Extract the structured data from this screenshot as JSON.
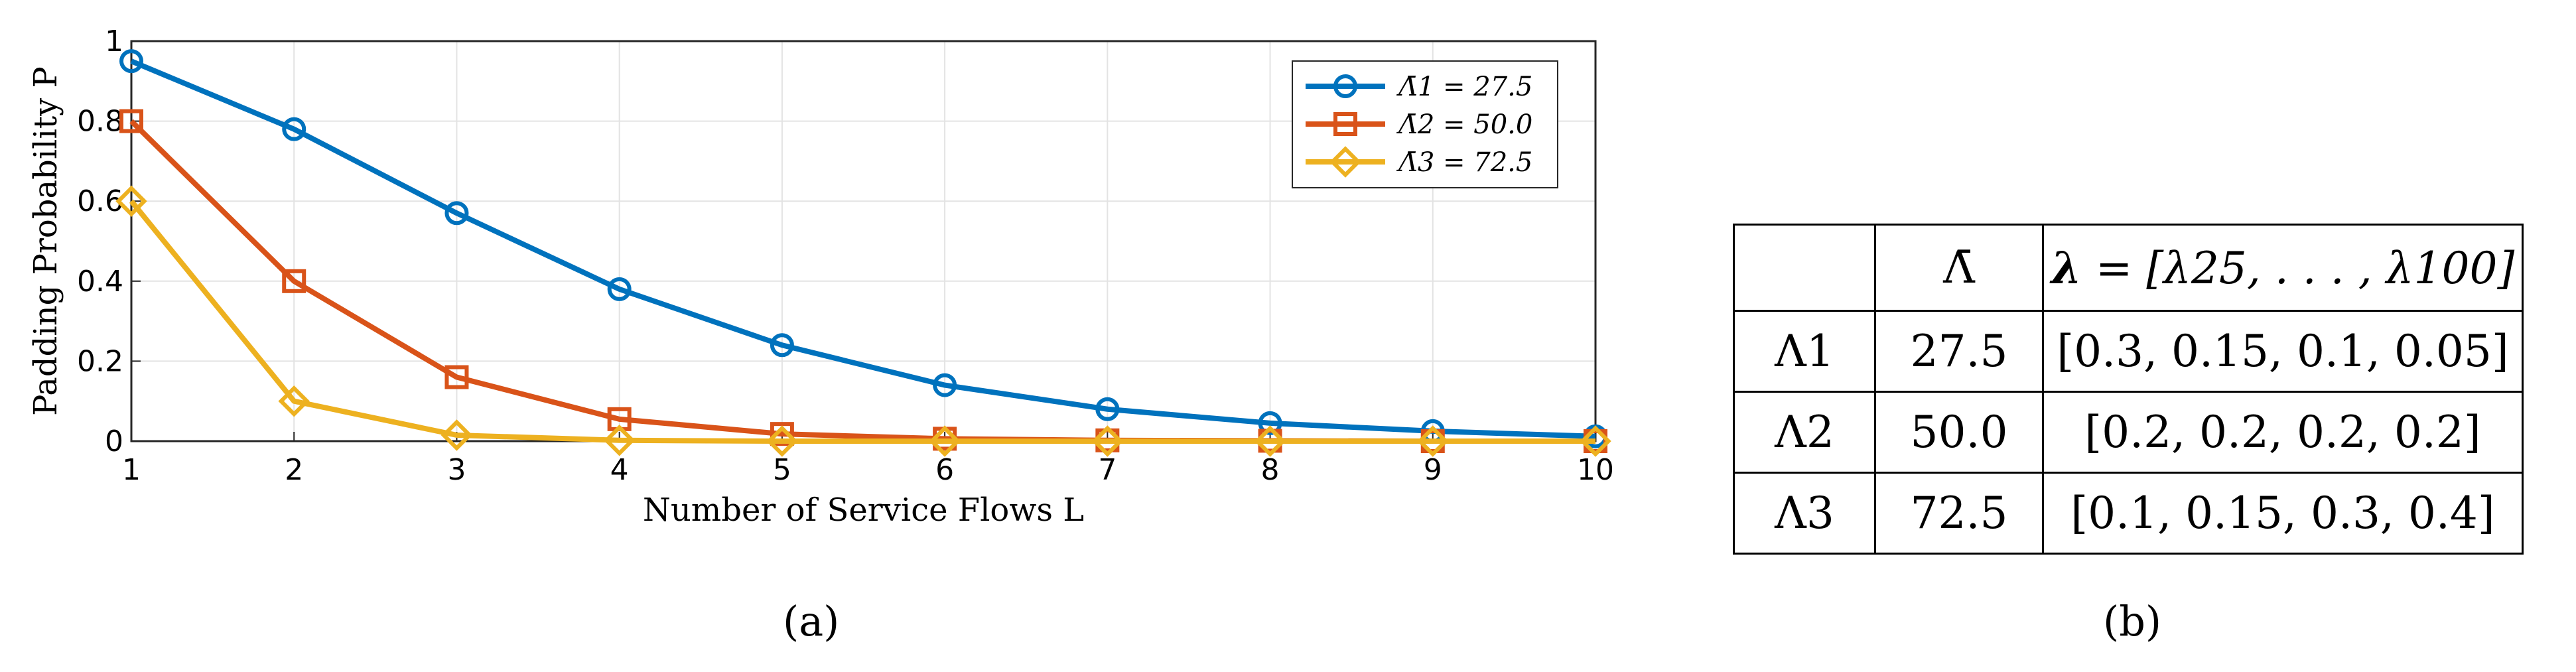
{
  "chart_data": {
    "type": "line",
    "x": [
      1,
      2,
      3,
      4,
      5,
      6,
      7,
      8,
      9,
      10
    ],
    "xlabel": "Number of Service Flows L",
    "ylabel": "Padding Probability P",
    "xlim": [
      1,
      10
    ],
    "ylim": [
      0,
      1
    ],
    "xticks": [
      "1",
      "2",
      "3",
      "4",
      "5",
      "6",
      "7",
      "8",
      "9",
      "10"
    ],
    "yticks": [
      "0",
      "0.2",
      "0.4",
      "0.6",
      "0.8",
      "1"
    ],
    "grid": true,
    "legend_position": "top-right",
    "series": [
      {
        "name": "Λ̄1 = 27.5",
        "marker": "circle",
        "color": "#0072BD",
        "values": [
          0.95,
          0.78,
          0.57,
          0.38,
          0.24,
          0.14,
          0.08,
          0.045,
          0.025,
          0.012
        ]
      },
      {
        "name": "Λ̄2 = 50.0",
        "marker": "square",
        "color": "#D95319",
        "values": [
          0.8,
          0.4,
          0.16,
          0.055,
          0.018,
          0.006,
          0.002,
          0.001,
          0.0,
          0.0
        ]
      },
      {
        "name": "Λ̄3 = 72.5",
        "marker": "diamond",
        "color": "#EDB120",
        "values": [
          0.6,
          0.1,
          0.015,
          0.002,
          0.0,
          0.0,
          0.0,
          0.0,
          0.0,
          0.0
        ]
      }
    ]
  },
  "panel_labels": {
    "a": "(a)",
    "b": "(b)"
  },
  "table": {
    "header": {
      "col0": "",
      "col1": "Λ̄",
      "col2_lambda": "λ",
      "col2_rest": " = [λ25, . . . , λ100]"
    },
    "rows": [
      {
        "label": "Λ1",
        "mean": "27.5",
        "vector": "[0.3, 0.15, 0.1, 0.05]"
      },
      {
        "label": "Λ2",
        "mean": "50.0",
        "vector": "[0.2, 0.2, 0.2, 0.2]"
      },
      {
        "label": "Λ3",
        "mean": "72.5",
        "vector": "[0.1, 0.15, 0.3, 0.4]"
      }
    ]
  }
}
